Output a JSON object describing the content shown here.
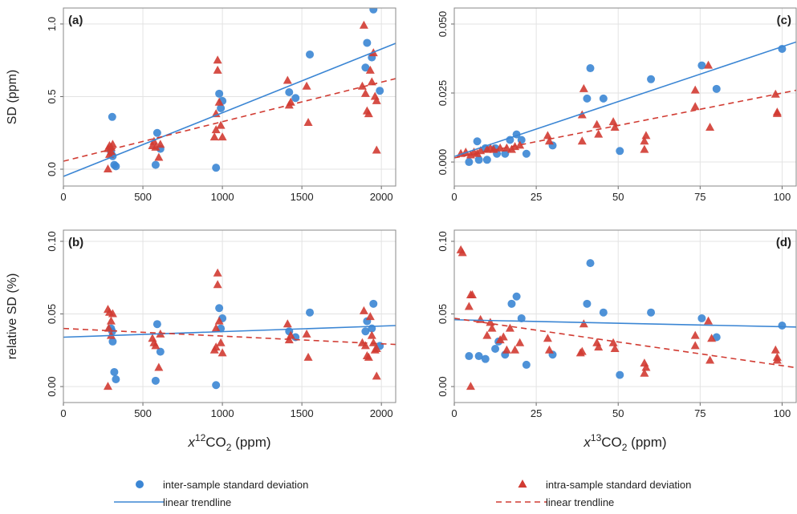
{
  "chart_data": [
    {
      "type": "scatter",
      "title": "(a)",
      "y_label": "SD (ppm)",
      "xlim": [
        0,
        2090
      ],
      "ylim": [
        -0.116,
        1.11
      ],
      "xticks": [
        0,
        500,
        1000,
        1500,
        2000
      ],
      "yticks": [
        {
          "value": 0,
          "label": "0.0"
        },
        {
          "value": 0.5,
          "label": "0.5"
        },
        {
          "value": 1,
          "label": "1.0"
        }
      ],
      "grid": true,
      "title_corner": "left",
      "series": [
        {
          "name": "inter-sample standard deviation",
          "color": "#3b86d4",
          "marker": "circle",
          "x": [
            307,
            300,
            310,
            320,
            330,
            580,
            590,
            610,
            960,
            980,
            990,
            1000,
            1420,
            1460,
            1550,
            1900,
            1910,
            1940,
            1950,
            1990
          ],
          "values": [
            0.36,
            0.12,
            0.09,
            0.03,
            0.02,
            0.03,
            0.25,
            0.14,
            0.01,
            0.52,
            0.42,
            0.47,
            0.53,
            0.49,
            0.79,
            0.7,
            0.87,
            0.77,
            1.1,
            0.54
          ]
        },
        {
          "name": "intra-sample standard deviation",
          "color": "#d13b32",
          "marker": "triangle",
          "x": [
            280,
            290,
            300,
            290,
            300,
            310,
            280,
            560,
            570,
            580,
            600,
            610,
            950,
            960,
            970,
            970,
            980,
            990,
            1000,
            960,
            1410,
            1420,
            1430,
            1530,
            1540,
            1880,
            1890,
            1900,
            1910,
            1930,
            1940,
            1950,
            1960,
            1970,
            1970,
            1920
          ],
          "values": [
            0.14,
            0.16,
            0.15,
            0.1,
            0.12,
            0.17,
            0.0,
            0.16,
            0.19,
            0.15,
            0.08,
            0.17,
            0.22,
            0.38,
            0.75,
            0.68,
            0.46,
            0.3,
            0.22,
            0.27,
            0.61,
            0.44,
            0.46,
            0.57,
            0.32,
            0.57,
            0.99,
            0.52,
            0.4,
            0.68,
            0.6,
            0.8,
            0.5,
            0.47,
            0.13,
            0.38
          ]
        },
        {
          "name": "linear trendline",
          "color": "#3b86d4",
          "line": "solid",
          "x": [
            0,
            2090
          ],
          "values": [
            -0.05,
            0.867
          ]
        },
        {
          "name": "linear trendline",
          "color": "#d13b32",
          "line": "dashed",
          "x": [
            0,
            2090
          ],
          "values": [
            0.055,
            0.624
          ]
        }
      ]
    },
    {
      "type": "scatter",
      "title": "(b)",
      "y_label": "relative SD (%)",
      "x_label": [
        "x",
        "12",
        "CO",
        "2",
        " (ppm)"
      ],
      "xlim": [
        0,
        2090
      ],
      "ylim": [
        -0.011,
        0.1077
      ],
      "xticks": [
        0,
        500,
        1000,
        1500,
        2000
      ],
      "yticks": [
        {
          "value": 0,
          "label": "0.00"
        },
        {
          "value": 0.05,
          "label": "0.05"
        },
        {
          "value": 0.1,
          "label": "0.10"
        }
      ],
      "grid": true,
      "title_corner": "left",
      "series": [
        {
          "color": "#3b86d4",
          "marker": "circle",
          "x": [
            307,
            300,
            310,
            320,
            330,
            580,
            590,
            610,
            960,
            980,
            990,
            1000,
            1420,
            1460,
            1550,
            1900,
            1910,
            1940,
            1950,
            1990
          ],
          "values": [
            0.038,
            0.04,
            0.031,
            0.01,
            0.005,
            0.004,
            0.043,
            0.024,
            0.001,
            0.054,
            0.04,
            0.047,
            0.038,
            0.034,
            0.051,
            0.038,
            0.045,
            0.04,
            0.057,
            0.028
          ]
        },
        {
          "color": "#d13b32",
          "marker": "triangle",
          "x": [
            280,
            290,
            300,
            285,
            300,
            310,
            280,
            560,
            570,
            580,
            600,
            610,
            950,
            960,
            970,
            970,
            980,
            990,
            1000,
            960,
            1410,
            1420,
            1430,
            1530,
            1540,
            1880,
            1890,
            1900,
            1910,
            1930,
            1940,
            1950,
            1960,
            1970,
            1970,
            1920
          ],
          "values": [
            0.053,
            0.051,
            0.045,
            0.04,
            0.035,
            0.05,
            0.0,
            0.033,
            0.03,
            0.028,
            0.013,
            0.036,
            0.025,
            0.04,
            0.078,
            0.07,
            0.045,
            0.03,
            0.023,
            0.027,
            0.043,
            0.032,
            0.035,
            0.036,
            0.02,
            0.03,
            0.052,
            0.028,
            0.021,
            0.048,
            0.035,
            0.03,
            0.025,
            0.026,
            0.007,
            0.02
          ]
        },
        {
          "color": "#3b86d4",
          "line": "solid",
          "x": [
            0,
            2090
          ],
          "values": [
            0.034,
            0.042
          ]
        },
        {
          "color": "#d13b32",
          "line": "dashed",
          "x": [
            0,
            2090
          ],
          "values": [
            0.04,
            0.029
          ]
        }
      ]
    },
    {
      "type": "scatter",
      "title": "(c)",
      "xlim": [
        0,
        104.3
      ],
      "ylim": [
        -0.0087,
        0.0558
      ],
      "xticks": [
        0,
        25,
        50,
        75,
        100
      ],
      "yticks": [
        {
          "value": 0,
          "label": "0.000"
        },
        {
          "value": 0.025,
          "label": "0.025"
        },
        {
          "value": 0.05,
          "label": "0.050"
        }
      ],
      "grid": true,
      "title_corner": "right",
      "series": [
        {
          "color": "#3b86d4",
          "marker": "circle",
          "x": [
            4.5,
            7,
            7.5,
            9.5,
            10,
            12.5,
            13,
            15.5,
            17,
            19,
            20.5,
            22,
            30,
            40.5,
            41.5,
            45.5,
            50.5,
            60,
            75.5,
            80,
            100
          ],
          "values": [
            0.0,
            0.0075,
            0.0008,
            0.005,
            0.0008,
            0.005,
            0.003,
            0.003,
            0.008,
            0.01,
            0.008,
            0.003,
            0.006,
            0.023,
            0.034,
            0.023,
            0.004,
            0.03,
            0.035,
            0.0265,
            0.041
          ]
        },
        {
          "color": "#d13b32",
          "marker": "triangle",
          "x": [
            2,
            3.5,
            5,
            6,
            7,
            8,
            10,
            11,
            12,
            14,
            16,
            17.5,
            18.5,
            20,
            28.5,
            29,
            39,
            39.5,
            39,
            43.5,
            44,
            48.5,
            49,
            58,
            58.5,
            58,
            73.5,
            73.5,
            77.5,
            78,
            98,
            98.5,
            98.5
          ],
          "values": [
            0.003,
            0.0035,
            0.0025,
            0.0035,
            0.003,
            0.004,
            0.0045,
            0.005,
            0.0045,
            0.005,
            0.005,
            0.0045,
            0.0055,
            0.006,
            0.0095,
            0.0075,
            0.017,
            0.0265,
            0.0075,
            0.0135,
            0.01,
            0.0145,
            0.0125,
            0.0045,
            0.0095,
            0.0075,
            0.026,
            0.02,
            0.035,
            0.0125,
            0.0245,
            0.018,
            0.0175
          ]
        },
        {
          "color": "#3b86d4",
          "line": "solid",
          "x": [
            0,
            104.3
          ],
          "values": [
            0.002,
            0.0435
          ]
        },
        {
          "color": "#d13b32",
          "line": "dashed",
          "x": [
            0,
            104.3
          ],
          "values": [
            0.0015,
            0.026
          ]
        }
      ]
    },
    {
      "type": "scatter",
      "title": "(d)",
      "x_label": [
        "x",
        "13",
        "CO",
        "2",
        " (ppm)"
      ],
      "xlim": [
        0,
        104.3
      ],
      "ylim": [
        -0.011,
        0.1077
      ],
      "xticks": [
        0,
        25,
        50,
        75,
        100
      ],
      "yticks": [
        {
          "value": 0,
          "label": "0.00"
        },
        {
          "value": 0.05,
          "label": "0.05"
        },
        {
          "value": 0.1,
          "label": "0.10"
        }
      ],
      "grid": true,
      "title_corner": "right",
      "series": [
        {
          "color": "#3b86d4",
          "marker": "circle",
          "x": [
            4.5,
            7.5,
            9.5,
            12.5,
            13.5,
            15.5,
            17.5,
            19,
            20.5,
            22,
            30,
            40.5,
            41.5,
            45.5,
            50.5,
            60,
            75.5,
            80,
            100
          ],
          "values": [
            0.021,
            0.021,
            0.019,
            0.026,
            0.031,
            0.022,
            0.057,
            0.062,
            0.047,
            0.015,
            0.022,
            0.057,
            0.085,
            0.051,
            0.008,
            0.051,
            0.047,
            0.034,
            0.042
          ]
        },
        {
          "color": "#d13b32",
          "marker": "triangle",
          "x": [
            2,
            2.5,
            5,
            5.5,
            4.5,
            5,
            8,
            10,
            11,
            11.5,
            14,
            15,
            16,
            17,
            18.5,
            20,
            28.5,
            29,
            38.5,
            39,
            39.5,
            43.5,
            44,
            48.5,
            49,
            58,
            58.5,
            58,
            73.5,
            73.5,
            77.5,
            78,
            78.5,
            98,
            98.5,
            98.5
          ],
          "values": [
            0.094,
            0.092,
            0.063,
            0.063,
            0.055,
            0.0,
            0.046,
            0.035,
            0.044,
            0.04,
            0.032,
            0.034,
            0.025,
            0.04,
            0.025,
            0.03,
            0.033,
            0.025,
            0.023,
            0.024,
            0.043,
            0.03,
            0.027,
            0.03,
            0.026,
            0.016,
            0.013,
            0.009,
            0.035,
            0.028,
            0.045,
            0.018,
            0.033,
            0.025,
            0.02,
            0.018
          ]
        },
        {
          "color": "#3b86d4",
          "line": "solid",
          "x": [
            0,
            104.3
          ],
          "values": [
            0.046,
            0.041
          ]
        },
        {
          "color": "#d13b32",
          "line": "dashed",
          "x": [
            0,
            104.3
          ],
          "values": [
            0.047,
            0.013
          ]
        }
      ]
    }
  ]
}
